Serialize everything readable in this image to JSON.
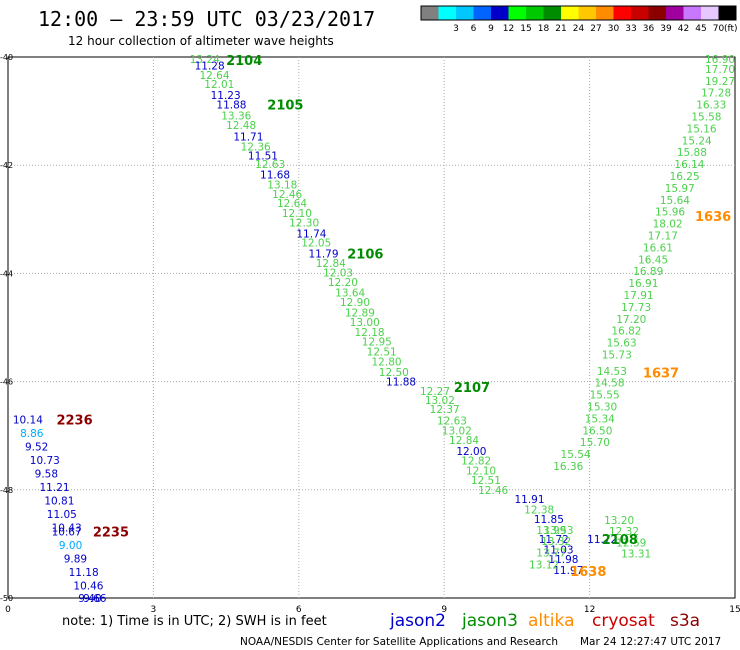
{
  "header": {
    "title": "12:00 — 23:59 UTC 03/23/2017",
    "subtitle": "12 hour collection of altimeter wave heights"
  },
  "legend_scale": {
    "unit": "(ft)",
    "bins": [
      {
        "label": "",
        "color": "#808080"
      },
      {
        "label": "3",
        "color": "#00ffff"
      },
      {
        "label": "6",
        "color": "#00c8ff"
      },
      {
        "label": "9",
        "color": "#0064ff"
      },
      {
        "label": "12",
        "color": "#0000c8"
      },
      {
        "label": "15",
        "color": "#00ff00"
      },
      {
        "label": "18",
        "color": "#00c800"
      },
      {
        "label": "21",
        "color": "#008c00"
      },
      {
        "label": "24",
        "color": "#ffff00"
      },
      {
        "label": "27",
        "color": "#ffc800"
      },
      {
        "label": "30",
        "color": "#ff8c00"
      },
      {
        "label": "33",
        "color": "#ff0000"
      },
      {
        "label": "36",
        "color": "#c80000"
      },
      {
        "label": "39",
        "color": "#8c0000"
      },
      {
        "label": "42",
        "color": "#a000a0"
      },
      {
        "label": "45",
        "color": "#c878ff"
      },
      {
        "label": "70",
        "color": "#e6c8ff"
      },
      {
        "label": "",
        "color": "#000000"
      }
    ]
  },
  "footer": {
    "note": "note: 1) Time is in UTC; 2) SWH is in feet",
    "credit": "NOAA/NESDIS Center for Satellite Applications and Research",
    "timestamp": "Mar 24 12:27:47 UTC 2017",
    "satellites": [
      {
        "name": "jason2",
        "color": "#0000c8"
      },
      {
        "name": "jason3",
        "color": "#008c00"
      },
      {
        "name": "altika",
        "color": "#ff8c00"
      },
      {
        "name": "cryosat",
        "color": "#c80000"
      },
      {
        "name": "s3a",
        "color": "#8c0000"
      }
    ]
  },
  "chart_data": {
    "type": "scatter",
    "title": "12:00 — 23:59 UTC 03/23/2017",
    "subtitle": "12 hour collection of altimeter wave heights",
    "xlim": [
      0,
      15
    ],
    "ylim": [
      -50,
      -40
    ],
    "x_ticks": [
      "0",
      "3",
      "6",
      "9",
      "12",
      "15"
    ],
    "y_ticks": [
      "-40",
      "-42",
      "-44",
      "-46",
      "-48",
      "-50"
    ],
    "grid": true,
    "colors": {
      "lightgreen": "#4cd14c",
      "blue": "#0000c8",
      "cyan": "#00aaff",
      "green": "#008c00",
      "darkred": "#8c0000",
      "orange": "#ff8c00"
    },
    "tracks": [
      {
        "name": "jason3",
        "label": "2104",
        "label_x": 4.5,
        "label_y": -40.0,
        "label_color": "green",
        "points": [
          {
            "x": 3.75,
            "y": -40.0,
            "v": "13.24",
            "c": "lightgreen"
          },
          {
            "x": 3.85,
            "y": -40.16,
            "v": "11.28",
            "c": "blue"
          },
          {
            "x": 3.95,
            "y": -40.33,
            "v": "12.64",
            "c": "lightgreen"
          },
          {
            "x": 4.05,
            "y": -40.5,
            "v": "12.01",
            "c": "lightgreen"
          },
          {
            "x": 4.18,
            "y": -40.7,
            "v": "11.23",
            "c": "blue"
          }
        ]
      },
      {
        "name": "jason3",
        "label": "2105",
        "label_x": 5.35,
        "label_y": -40.88,
        "label_color": "green",
        "points": [
          {
            "x": 4.3,
            "y": -40.88,
            "v": "11.88",
            "c": "blue"
          },
          {
            "x": 4.4,
            "y": -41.08,
            "v": "13.36",
            "c": "lightgreen"
          },
          {
            "x": 4.5,
            "y": -41.26,
            "v": "12.48",
            "c": "lightgreen"
          },
          {
            "x": 4.65,
            "y": -41.47,
            "v": "11.71",
            "c": "blue"
          },
          {
            "x": 4.8,
            "y": -41.65,
            "v": "12.36",
            "c": "lightgreen"
          },
          {
            "x": 4.95,
            "y": -41.82,
            "v": "11.51",
            "c": "blue"
          },
          {
            "x": 5.1,
            "y": -41.98,
            "v": "12.63",
            "c": "lightgreen"
          },
          {
            "x": 5.2,
            "y": -42.17,
            "v": "11.68",
            "c": "blue"
          },
          {
            "x": 5.35,
            "y": -42.36,
            "v": "13.18",
            "c": "lightgreen"
          },
          {
            "x": 5.45,
            "y": -42.53,
            "v": "12.46",
            "c": "lightgreen"
          },
          {
            "x": 5.55,
            "y": -42.7,
            "v": "12.64",
            "c": "lightgreen"
          },
          {
            "x": 5.65,
            "y": -42.88,
            "v": "12.10",
            "c": "lightgreen"
          },
          {
            "x": 5.8,
            "y": -43.06,
            "v": "12.30",
            "c": "lightgreen"
          },
          {
            "x": 5.95,
            "y": -43.26,
            "v": "11.74",
            "c": "blue"
          },
          {
            "x": 6.05,
            "y": -43.43,
            "v": "12.05",
            "c": "lightgreen"
          }
        ]
      },
      {
        "name": "jason3",
        "label": "2106",
        "label_x": 7.0,
        "label_y": -43.63,
        "label_color": "green",
        "points": [
          {
            "x": 6.2,
            "y": -43.63,
            "v": "11.79",
            "c": "blue"
          },
          {
            "x": 6.35,
            "y": -43.81,
            "v": "12.84",
            "c": "lightgreen"
          },
          {
            "x": 6.5,
            "y": -43.98,
            "v": "12.03",
            "c": "lightgreen"
          },
          {
            "x": 6.6,
            "y": -44.16,
            "v": "12.20",
            "c": "lightgreen"
          },
          {
            "x": 6.75,
            "y": -44.35,
            "v": "13.64",
            "c": "lightgreen"
          },
          {
            "x": 6.85,
            "y": -44.53,
            "v": "12.90",
            "c": "lightgreen"
          },
          {
            "x": 6.95,
            "y": -44.72,
            "v": "12.89",
            "c": "lightgreen"
          },
          {
            "x": 7.05,
            "y": -44.9,
            "v": "13.00",
            "c": "lightgreen"
          },
          {
            "x": 7.15,
            "y": -45.08,
            "v": "12.18",
            "c": "lightgreen"
          },
          {
            "x": 7.3,
            "y": -45.26,
            "v": "12.95",
            "c": "lightgreen"
          },
          {
            "x": 7.4,
            "y": -45.44,
            "v": "12.51",
            "c": "lightgreen"
          },
          {
            "x": 7.5,
            "y": -45.63,
            "v": "12.80",
            "c": "lightgreen"
          },
          {
            "x": 7.65,
            "y": -45.82,
            "v": "12.50",
            "c": "lightgreen"
          },
          {
            "x": 7.8,
            "y": -46.0,
            "v": "11.88",
            "c": "blue"
          }
        ]
      },
      {
        "name": "jason3",
        "label": "2107",
        "label_x": 9.2,
        "label_y": -46.1,
        "label_color": "green",
        "points": [
          {
            "x": 8.5,
            "y": -46.17,
            "v": "12.27",
            "c": "lightgreen"
          },
          {
            "x": 8.6,
            "y": -46.34,
            "v": "13.02",
            "c": "lightgreen"
          },
          {
            "x": 8.7,
            "y": -46.51,
            "v": "12.37",
            "c": "lightgreen"
          },
          {
            "x": 8.85,
            "y": -46.72,
            "v": "12.63",
            "c": "lightgreen"
          },
          {
            "x": 8.95,
            "y": -46.9,
            "v": "13.02",
            "c": "lightgreen"
          },
          {
            "x": 9.1,
            "y": -47.08,
            "v": "12.84",
            "c": "lightgreen"
          },
          {
            "x": 9.25,
            "y": -47.28,
            "v": "12.00",
            "c": "blue"
          },
          {
            "x": 9.35,
            "y": -47.46,
            "v": "12.82",
            "c": "lightgreen"
          },
          {
            "x": 9.45,
            "y": -47.64,
            "v": "12.10",
            "c": "lightgreen"
          },
          {
            "x": 9.55,
            "y": -47.82,
            "v": "12.51",
            "c": "lightgreen"
          },
          {
            "x": 9.7,
            "y": -48.0,
            "v": "12.46",
            "c": "lightgreen"
          },
          {
            "x": 10.45,
            "y": -48.17,
            "v": "11.91",
            "c": "blue"
          },
          {
            "x": 10.65,
            "y": -48.36,
            "v": "12.38",
            "c": "lightgreen"
          },
          {
            "x": 10.85,
            "y": -48.54,
            "v": "11.85",
            "c": "blue"
          },
          {
            "x": 10.9,
            "y": -48.74,
            "v": "13.99",
            "c": "lightgreen"
          },
          {
            "x": 10.95,
            "y": -48.91,
            "v": "11.72",
            "c": "blue"
          },
          {
            "x": 11.05,
            "y": -49.1,
            "v": "11.03",
            "c": "blue"
          },
          {
            "x": 11.15,
            "y": -49.28,
            "v": "11.98",
            "c": "blue"
          },
          {
            "x": 11.25,
            "y": -49.48,
            "v": "11.97",
            "c": "blue"
          }
        ]
      },
      {
        "name": "jason3",
        "label": "2108",
        "label_x": 12.25,
        "label_y": -48.91,
        "label_color": "green",
        "points": [
          {
            "x": 11.95,
            "y": -48.91,
            "v": "11.72",
            "c": "blue"
          }
        ]
      },
      {
        "name": "jason3",
        "label": "",
        "label_x": null,
        "label_y": null,
        "label_color": "green",
        "points": [
          {
            "x": 14.5,
            "y": -40.0,
            "v": "16.90",
            "c": "lightgreen"
          },
          {
            "x": 14.45,
            "y": -40.22,
            "v": "17.70",
            "c": "lightgreen"
          },
          {
            "x": 14.4,
            "y": -40.44,
            "v": "19.27",
            "c": "lightgreen"
          },
          {
            "x": 14.3,
            "y": -40.66,
            "v": "17.28",
            "c": "lightgreen"
          },
          {
            "x": 14.2,
            "y": -40.88,
            "v": "16.33",
            "c": "lightgreen"
          },
          {
            "x": 14.1,
            "y": -41.1,
            "v": "15.58",
            "c": "lightgreen"
          },
          {
            "x": 14.0,
            "y": -41.32,
            "v": "15.16",
            "c": "lightgreen"
          },
          {
            "x": 13.9,
            "y": -41.54,
            "v": "15.24",
            "c": "lightgreen"
          },
          {
            "x": 13.8,
            "y": -41.76,
            "v": "15.88",
            "c": "lightgreen"
          },
          {
            "x": 13.75,
            "y": -41.98,
            "v": "16.14",
            "c": "lightgreen"
          },
          {
            "x": 13.65,
            "y": -42.2,
            "v": "16.25",
            "c": "lightgreen"
          },
          {
            "x": 13.55,
            "y": -42.42,
            "v": "15.97",
            "c": "lightgreen"
          },
          {
            "x": 13.45,
            "y": -42.64,
            "v": "15.64",
            "c": "lightgreen"
          },
          {
            "x": 13.35,
            "y": -42.86,
            "v": "15.96",
            "c": "lightgreen"
          },
          {
            "x": 13.3,
            "y": -43.08,
            "v": "18.02",
            "c": "lightgreen"
          },
          {
            "x": 13.2,
            "y": -43.3,
            "v": "17.17",
            "c": "lightgreen"
          },
          {
            "x": 13.1,
            "y": -43.52,
            "v": "16.61",
            "c": "lightgreen"
          },
          {
            "x": 13.0,
            "y": -43.74,
            "v": "16.45",
            "c": "lightgreen"
          },
          {
            "x": 12.9,
            "y": -43.96,
            "v": "16.89",
            "c": "lightgreen"
          },
          {
            "x": 12.8,
            "y": -44.18,
            "v": "16.91",
            "c": "lightgreen"
          },
          {
            "x": 12.7,
            "y": -44.4,
            "v": "17.91",
            "c": "lightgreen"
          },
          {
            "x": 12.65,
            "y": -44.62,
            "v": "17.73",
            "c": "lightgreen"
          },
          {
            "x": 12.55,
            "y": -44.84,
            "v": "17.20",
            "c": "lightgreen"
          },
          {
            "x": 12.45,
            "y": -45.06,
            "v": "16.82",
            "c": "lightgreen"
          },
          {
            "x": 12.35,
            "y": -45.28,
            "v": "15.63",
            "c": "lightgreen"
          },
          {
            "x": 12.25,
            "y": -45.5,
            "v": "15.73",
            "c": "lightgreen"
          }
        ]
      },
      {
        "name": "altika",
        "label": "1636",
        "label_x": 14.45,
        "label_y": -42.94,
        "label_color": "orange",
        "points": []
      },
      {
        "name": "altika",
        "label": "1637",
        "label_x": 13.1,
        "label_y": -45.83,
        "label_color": "orange",
        "points": [
          {
            "x": 12.15,
            "y": -45.8,
            "v": "14.53",
            "c": "lightgreen"
          },
          {
            "x": 12.1,
            "y": -46.02,
            "v": "14.58",
            "c": "lightgreen"
          },
          {
            "x": 12.0,
            "y": -46.24,
            "v": "15.55",
            "c": "lightgreen"
          },
          {
            "x": 11.95,
            "y": -46.46,
            "v": "15.30",
            "c": "lightgreen"
          },
          {
            "x": 11.9,
            "y": -46.68,
            "v": "15.34",
            "c": "lightgreen"
          },
          {
            "x": 11.85,
            "y": -46.9,
            "v": "16.50",
            "c": "lightgreen"
          },
          {
            "x": 11.8,
            "y": -47.12,
            "v": "15.70",
            "c": "lightgreen"
          },
          {
            "x": 11.4,
            "y": -47.34,
            "v": "15.54",
            "c": "lightgreen"
          },
          {
            "x": 11.25,
            "y": -47.56,
            "v": "16.36",
            "c": "lightgreen"
          }
        ]
      },
      {
        "name": "altika",
        "label": "1638",
        "label_x": 11.6,
        "label_y": -49.5,
        "label_color": "orange",
        "points": [
          {
            "x": 11.05,
            "y": -48.74,
            "v": "13.53",
            "c": "lightgreen"
          },
          {
            "x": 11.0,
            "y": -48.95,
            "v": "13.32",
            "c": "lightgreen"
          },
          {
            "x": 10.9,
            "y": -49.16,
            "v": "13.77",
            "c": "lightgreen"
          },
          {
            "x": 10.75,
            "y": -49.38,
            "v": "13.12",
            "c": "lightgreen"
          },
          {
            "x": 12.3,
            "y": -48.56,
            "v": "13.20",
            "c": "lightgreen"
          },
          {
            "x": 12.4,
            "y": -48.76,
            "v": "12.32",
            "c": "lightgreen"
          },
          {
            "x": 12.55,
            "y": -48.97,
            "v": "12.59",
            "c": "lightgreen"
          },
          {
            "x": 12.65,
            "y": -49.18,
            "v": "13.31",
            "c": "lightgreen"
          }
        ]
      },
      {
        "name": "cryosat",
        "label": "2236",
        "label_x": 1.0,
        "label_y": -46.7,
        "label_color": "darkred",
        "points": [
          {
            "x": 0.1,
            "y": -46.7,
            "v": "10.14",
            "c": "blue"
          },
          {
            "x": 0.25,
            "y": -46.95,
            "v": "8.86",
            "c": "cyan"
          },
          {
            "x": 0.35,
            "y": -47.2,
            "v": "9.52",
            "c": "blue"
          },
          {
            "x": 0.45,
            "y": -47.45,
            "v": "10.73",
            "c": "blue"
          },
          {
            "x": 0.55,
            "y": -47.7,
            "v": "9.58",
            "c": "blue"
          },
          {
            "x": 0.65,
            "y": -47.95,
            "v": "11.21",
            "c": "blue"
          },
          {
            "x": 0.75,
            "y": -48.2,
            "v": "10.81",
            "c": "blue"
          },
          {
            "x": 0.8,
            "y": -48.45,
            "v": "11.05",
            "c": "blue"
          },
          {
            "x": 0.9,
            "y": -48.7,
            "v": "10.43",
            "c": "blue"
          }
        ]
      },
      {
        "name": "cryosat",
        "label": "2235",
        "label_x": 1.75,
        "label_y": -48.77,
        "label_color": "darkred",
        "points": [
          {
            "x": 0.9,
            "y": -48.77,
            "v": "10.67",
            "c": "blue"
          },
          {
            "x": 1.05,
            "y": -49.02,
            "v": "9.00",
            "c": "cyan"
          },
          {
            "x": 1.15,
            "y": -49.27,
            "v": "9.89",
            "c": "blue"
          },
          {
            "x": 1.25,
            "y": -49.52,
            "v": "11.18",
            "c": "blue"
          },
          {
            "x": 1.35,
            "y": -49.77,
            "v": "10.46",
            "c": "blue"
          },
          {
            "x": 1.45,
            "y": -50.0,
            "v": "9.40",
            "c": "blue"
          },
          {
            "x": 1.55,
            "y": -50.22,
            "v": "9.66",
            "c": "blue"
          }
        ]
      }
    ]
  }
}
